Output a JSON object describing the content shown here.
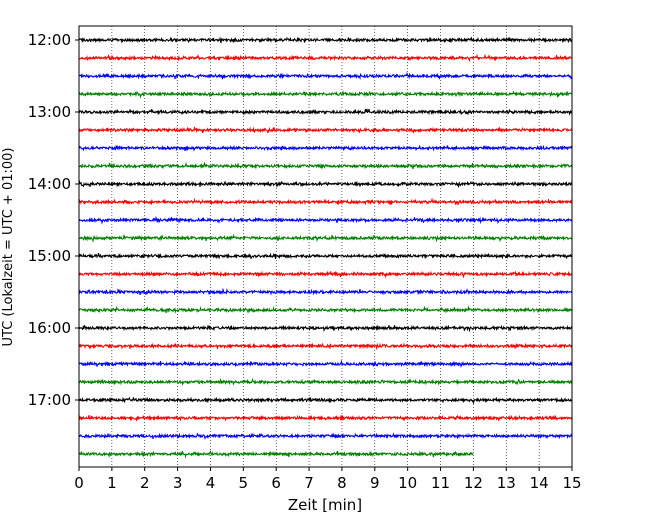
{
  "chart_data": {
    "type": "line",
    "title": "",
    "xlabel": "Zeit  [min]",
    "ylabel": "UTC (Lokalzeit = UTC + 01:00)",
    "xlim": [
      0,
      15
    ],
    "x_ticks": [
      "0",
      "1",
      "2",
      "3",
      "4",
      "5",
      "6",
      "7",
      "8",
      "9",
      "10",
      "11",
      "12",
      "13",
      "14",
      "15"
    ],
    "y_ticks": [
      "12:00",
      "13:00",
      "14:00",
      "15:00",
      "16:00",
      "17:00"
    ],
    "grid": "vertical dotted",
    "legend": "none",
    "trace_colors": [
      "#000000",
      "#ff0000",
      "#0000ff",
      "#008000"
    ],
    "traces": [
      {
        "start": "12:00",
        "end_min": 15
      },
      {
        "start": "12:15",
        "end_min": 15
      },
      {
        "start": "12:30",
        "end_min": 15
      },
      {
        "start": "12:45",
        "end_min": 15
      },
      {
        "start": "13:00",
        "end_min": 15
      },
      {
        "start": "13:15",
        "end_min": 15
      },
      {
        "start": "13:30",
        "end_min": 15
      },
      {
        "start": "13:45",
        "end_min": 15
      },
      {
        "start": "14:00",
        "end_min": 15
      },
      {
        "start": "14:15",
        "end_min": 15
      },
      {
        "start": "14:30",
        "end_min": 15
      },
      {
        "start": "14:45",
        "end_min": 15
      },
      {
        "start": "15:00",
        "end_min": 15
      },
      {
        "start": "15:15",
        "end_min": 15
      },
      {
        "start": "15:30",
        "end_min": 15
      },
      {
        "start": "15:45",
        "end_min": 15
      },
      {
        "start": "16:00",
        "end_min": 15
      },
      {
        "start": "16:15",
        "end_min": 15
      },
      {
        "start": "16:30",
        "end_min": 15
      },
      {
        "start": "16:45",
        "end_min": 15
      },
      {
        "start": "17:00",
        "end_min": 15
      },
      {
        "start": "17:15",
        "end_min": 15
      },
      {
        "start": "17:30",
        "end_min": 15
      },
      {
        "start": "17:45",
        "end_min": 12
      }
    ]
  }
}
